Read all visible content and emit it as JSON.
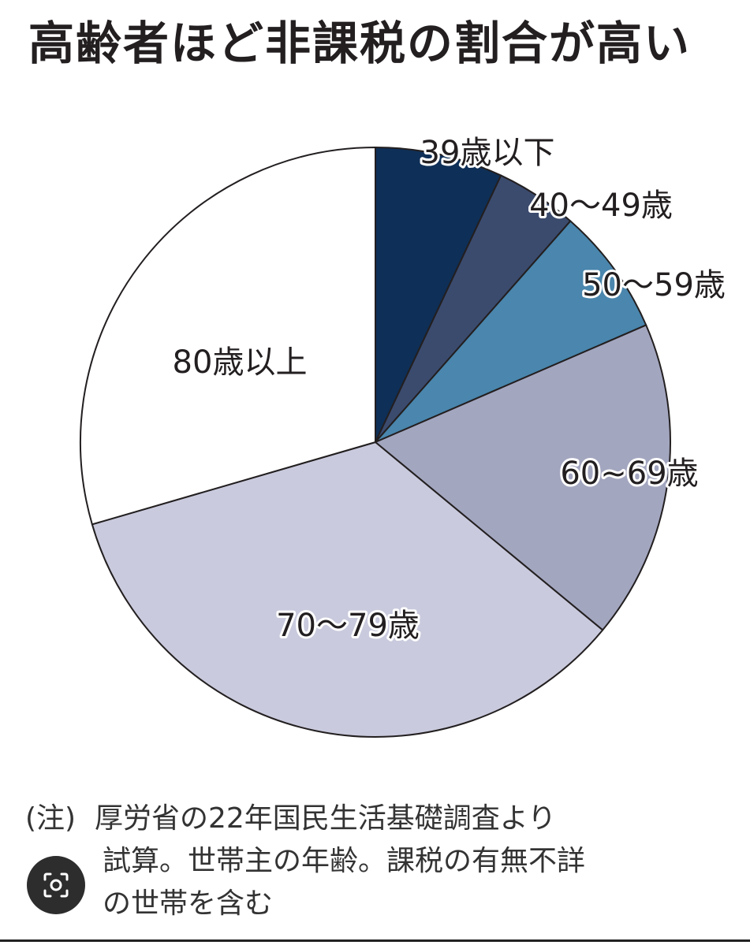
{
  "chart_data": {
    "type": "pie",
    "title": "高齢者ほど非課税の割合が高い",
    "start": "12 o'clock",
    "direction": "clockwise",
    "slices": [
      {
        "label": "39歳以下",
        "value": 7,
        "color": "#0e2f57"
      },
      {
        "label": "40〜49歳",
        "value": 4.5,
        "color": "#3b4b6e"
      },
      {
        "label": "50〜59歳",
        "value": 7,
        "color": "#4a86ad"
      },
      {
        "label": "60~69歳",
        "value": 17.5,
        "color": "#a3a6bf"
      },
      {
        "label": "70〜79歳",
        "value": 34.5,
        "color": "#c9cadd"
      },
      {
        "label": "80歳以上",
        "value": 29.5,
        "color": "#ffffff"
      }
    ]
  },
  "note": {
    "prefix": "(注)",
    "lines": [
      "厚労省の22年国民生活基礎調査より",
      "試算。世帯主の年齢。課税の有無不詳",
      "の世帯を含む"
    ]
  },
  "overlay": {
    "icon": "lens-search-icon"
  }
}
